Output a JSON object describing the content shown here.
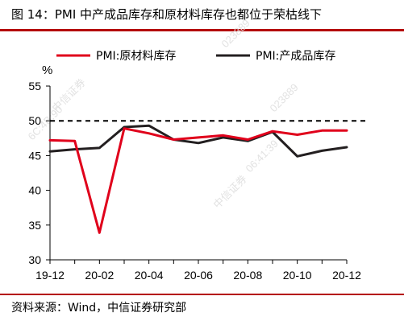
{
  "header": {
    "title": "图 14：PMI 中产成品库存和原材料库存也都位于荣枯线下"
  },
  "footer": {
    "source": "资料来源：Wind，中信证券研究部"
  },
  "watermark": {
    "texts": [
      "中信证券",
      "023889",
      "6C:4B:90",
      "06:41:39"
    ]
  },
  "colors": {
    "series_1": "#e0001b",
    "series_2": "#231f20",
    "reference_line": "#000000"
  },
  "chart_data": {
    "type": "line",
    "title": "",
    "xlabel": "",
    "ylabel": "%",
    "ylim": [
      30,
      55
    ],
    "y_ticks": [
      30,
      35,
      40,
      45,
      50,
      55
    ],
    "x": [
      "19-12",
      "20-01",
      "20-02",
      "20-03",
      "20-04",
      "20-05",
      "20-06",
      "20-07",
      "20-08",
      "20-09",
      "20-10",
      "20-11",
      "20-12"
    ],
    "x_tick_labels": [
      "19-12",
      "20-02",
      "20-04",
      "20-06",
      "20-08",
      "20-10",
      "20-12"
    ],
    "grid": false,
    "legend_position": "top",
    "reference_line": {
      "y": 50,
      "style": "dashed"
    },
    "series": [
      {
        "name": "PMI:原材料库存",
        "color": "#e0001b",
        "values": [
          47.2,
          47.1,
          33.9,
          48.9,
          48.2,
          47.3,
          47.6,
          47.9,
          47.3,
          48.5,
          48.0,
          48.6,
          48.6
        ]
      },
      {
        "name": "PMI:产成品库存",
        "color": "#231f20",
        "values": [
          45.6,
          45.9,
          46.1,
          49.1,
          49.3,
          47.3,
          46.8,
          47.6,
          47.1,
          48.4,
          44.9,
          45.7,
          46.2
        ]
      }
    ]
  }
}
